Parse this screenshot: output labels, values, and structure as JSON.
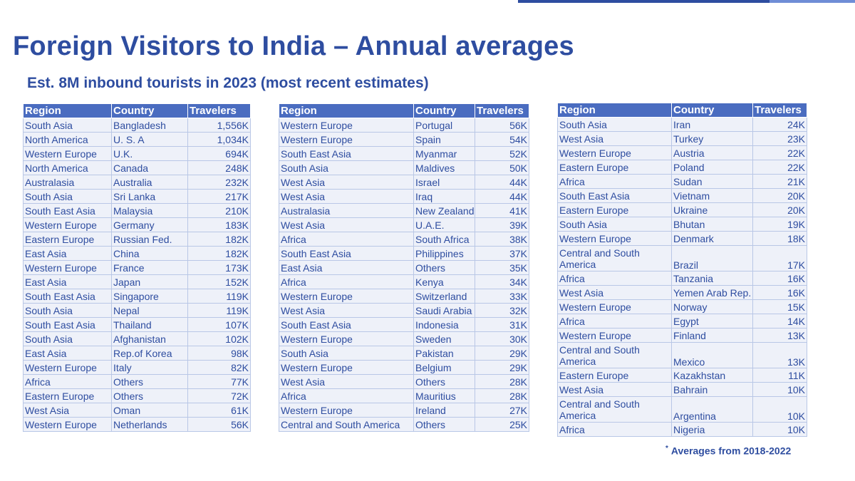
{
  "title": "Foreign Visitors to India – Annual averages",
  "subtitle": "Est. 8M inbound tourists in 2023 (most recent estimates)",
  "headers": {
    "region": "Region",
    "country": "Country",
    "travelers": "Travelers"
  },
  "footnote": {
    "mark": "*",
    "text": "Averages from 2018-2022"
  },
  "colors": {
    "accent": "#2e4da0",
    "header_bg": "#4a6cc0",
    "cell_bg": "#eef1f9",
    "cell_border": "#b9c7e6"
  },
  "tables": [
    [
      {
        "region": "South Asia",
        "country": "Bangladesh",
        "travelers": "1,556K"
      },
      {
        "region": "North America",
        "country": "U. S. A",
        "travelers": "1,034K"
      },
      {
        "region": "Western Europe",
        "country": "U.K.",
        "travelers": "694K"
      },
      {
        "region": "North America",
        "country": "Canada",
        "travelers": "248K"
      },
      {
        "region": "Australasia",
        "country": "Australia",
        "travelers": "232K"
      },
      {
        "region": "South Asia",
        "country": "Sri Lanka",
        "travelers": "217K"
      },
      {
        "region": "South East Asia",
        "country": "Malaysia",
        "travelers": "210K"
      },
      {
        "region": "Western Europe",
        "country": "Germany",
        "travelers": "183K"
      },
      {
        "region": "Eastern Europe",
        "country": "Russian Fed.",
        "travelers": "182K"
      },
      {
        "region": "East Asia",
        "country": "China",
        "travelers": "182K"
      },
      {
        "region": "Western Europe",
        "country": "France",
        "travelers": "173K"
      },
      {
        "region": "East Asia",
        "country": "Japan",
        "travelers": "152K"
      },
      {
        "region": "South East Asia",
        "country": "Singapore",
        "travelers": "119K"
      },
      {
        "region": "South Asia",
        "country": "Nepal",
        "travelers": "119K"
      },
      {
        "region": "South East Asia",
        "country": "Thailand",
        "travelers": "107K"
      },
      {
        "region": "South Asia",
        "country": "Afghanistan",
        "travelers": "102K"
      },
      {
        "region": "East Asia",
        "country": "Rep.of Korea",
        "travelers": "98K"
      },
      {
        "region": "Western Europe",
        "country": "Italy",
        "travelers": "82K"
      },
      {
        "region": "Africa",
        "country": "Others",
        "travelers": "77K"
      },
      {
        "region": "Eastern Europe",
        "country": "Others",
        "travelers": "72K"
      },
      {
        "region": "West Asia",
        "country": "Oman",
        "travelers": "61K"
      },
      {
        "region": "Western Europe",
        "country": "Netherlands",
        "travelers": "56K"
      }
    ],
    [
      {
        "region": "Western Europe",
        "country": "Portugal",
        "travelers": "56K"
      },
      {
        "region": "Western Europe",
        "country": "Spain",
        "travelers": "54K"
      },
      {
        "region": "South East Asia",
        "country": "Myanmar",
        "travelers": "52K"
      },
      {
        "region": "South Asia",
        "country": "Maldives",
        "travelers": "50K"
      },
      {
        "region": "West Asia",
        "country": "Israel",
        "travelers": "44K"
      },
      {
        "region": "West Asia",
        "country": "Iraq",
        "travelers": "44K"
      },
      {
        "region": "Australasia",
        "country": "New Zealand",
        "travelers": "41K"
      },
      {
        "region": "West Asia",
        "country": "U.A.E.",
        "travelers": "39K"
      },
      {
        "region": "Africa",
        "country": "South Africa",
        "travelers": "38K"
      },
      {
        "region": "South East Asia",
        "country": "Philippines",
        "travelers": "37K"
      },
      {
        "region": "East Asia",
        "country": "Others",
        "travelers": "35K"
      },
      {
        "region": "Africa",
        "country": "Kenya",
        "travelers": "34K"
      },
      {
        "region": "Western Europe",
        "country": "Switzerland",
        "travelers": "33K"
      },
      {
        "region": "West Asia",
        "country": "Saudi Arabia",
        "travelers": "32K"
      },
      {
        "region": "South East Asia",
        "country": "Indonesia",
        "travelers": "31K"
      },
      {
        "region": "Western Europe",
        "country": "Sweden",
        "travelers": "30K"
      },
      {
        "region": "South Asia",
        "country": "Pakistan",
        "travelers": "29K"
      },
      {
        "region": "Western Europe",
        "country": "Belgium",
        "travelers": "29K"
      },
      {
        "region": "West Asia",
        "country": "Others",
        "travelers": "28K"
      },
      {
        "region": "Africa",
        "country": "Mauritius",
        "travelers": "28K"
      },
      {
        "region": "Western Europe",
        "country": "Ireland",
        "travelers": "27K"
      },
      {
        "region": "Central and South America",
        "country": "Others",
        "travelers": "25K"
      }
    ],
    [
      {
        "region": "South Asia",
        "country": "Iran",
        "travelers": "24K"
      },
      {
        "region": "West Asia",
        "country": "Turkey",
        "travelers": "23K"
      },
      {
        "region": "Western Europe",
        "country": "Austria",
        "travelers": "22K"
      },
      {
        "region": "Eastern Europe",
        "country": "Poland",
        "travelers": "22K"
      },
      {
        "region": "Africa",
        "country": "Sudan",
        "travelers": "21K"
      },
      {
        "region": "South East Asia",
        "country": "Vietnam",
        "travelers": "20K"
      },
      {
        "region": "Eastern Europe",
        "country": "Ukraine",
        "travelers": "20K"
      },
      {
        "region": "South Asia",
        "country": "Bhutan",
        "travelers": "19K"
      },
      {
        "region": "Western Europe",
        "country": "Denmark",
        "travelers": "18K"
      },
      {
        "region": "Central and South America",
        "country": "Brazil",
        "travelers": "17K",
        "tall": true
      },
      {
        "region": "Africa",
        "country": "Tanzania",
        "travelers": "16K"
      },
      {
        "region": "West Asia",
        "country": "Yemen Arab Rep.",
        "travelers": "16K"
      },
      {
        "region": "Western Europe",
        "country": "Norway",
        "travelers": "15K"
      },
      {
        "region": "Africa",
        "country": "Egypt",
        "travelers": "14K"
      },
      {
        "region": "Western Europe",
        "country": "Finland",
        "travelers": "13K"
      },
      {
        "region": "Central and South America",
        "country": "Mexico",
        "travelers": "13K",
        "tall": true
      },
      {
        "region": "Eastern Europe",
        "country": "Kazakhstan",
        "travelers": "11K"
      },
      {
        "region": "West Asia",
        "country": "Bahrain",
        "travelers": "10K"
      },
      {
        "region": "Central and South America",
        "country": "Argentina",
        "travelers": "10K",
        "tall": true
      },
      {
        "region": "Africa",
        "country": "Nigeria",
        "travelers": "10K"
      }
    ]
  ]
}
